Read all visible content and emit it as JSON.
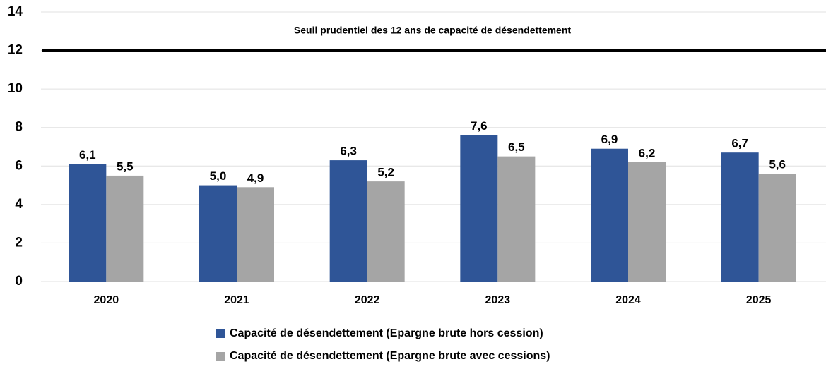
{
  "chart_data": {
    "type": "bar",
    "categories": [
      "2020",
      "2021",
      "2022",
      "2023",
      "2024",
      "2025"
    ],
    "series": [
      {
        "name": "Capacité de désendettement (Epargne brute hors cession)",
        "color": "#2f5597",
        "values": [
          6.1,
          5.0,
          6.3,
          7.6,
          6.9,
          6.7
        ],
        "value_labels": [
          "6,1",
          "5,0",
          "6,3",
          "7,6",
          "6,9",
          "6,7"
        ]
      },
      {
        "name": "Capacité de désendettement (Epargne brute avec cessions)",
        "color": "#a5a5a5",
        "values": [
          5.5,
          4.9,
          5.2,
          6.5,
          6.2,
          5.6
        ],
        "value_labels": [
          "5,5",
          "4,9",
          "5,2",
          "6,5",
          "6,2",
          "5,6"
        ]
      }
    ],
    "reference_line": {
      "value": 12,
      "label": "Seuil prudentiel des 12 ans de capacité de désendettement",
      "color": "#000000"
    },
    "ylim": [
      0,
      14
    ],
    "yticks": [
      0,
      2,
      4,
      6,
      8,
      10,
      12,
      14
    ],
    "grid": true,
    "legend": "bottom"
  }
}
